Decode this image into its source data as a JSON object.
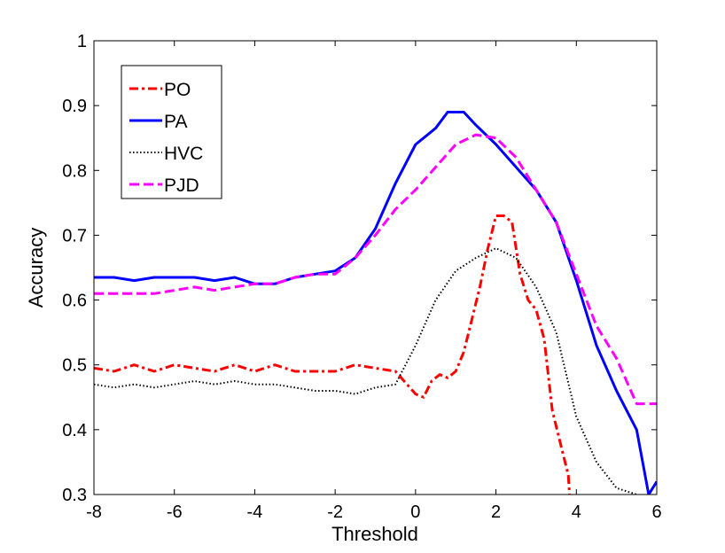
{
  "chart_data": {
    "type": "line",
    "title": "",
    "xlabel": "Threshold",
    "ylabel": "Accuracy",
    "xlim": [
      -8,
      6
    ],
    "ylim": [
      0.3,
      1
    ],
    "xticks": [
      -8,
      -6,
      -4,
      -2,
      0,
      2,
      4,
      6
    ],
    "xtick_labels": [
      "-8",
      "-6",
      "-4",
      "-2",
      "0",
      "2",
      "4",
      "6"
    ],
    "yticks": [
      0.3,
      0.4,
      0.5,
      0.6,
      0.7,
      0.8,
      0.9,
      1
    ],
    "ytick_labels": [
      "0.3",
      "0.4",
      "0.5",
      "0.6",
      "0.7",
      "0.8",
      "0.9",
      "1"
    ],
    "grid": false,
    "legend_position": "top-left",
    "series": [
      {
        "name": "PO",
        "color": "#ff0000",
        "dash": "dashdot",
        "x": [
          -8,
          -7.5,
          -7,
          -6.5,
          -6,
          -5.5,
          -5,
          -4.5,
          -4,
          -3.5,
          -3,
          -2.5,
          -2,
          -1.5,
          -1,
          -0.5,
          0,
          0.2,
          0.4,
          0.6,
          0.8,
          1,
          1.2,
          1.4,
          1.6,
          1.8,
          2,
          2.2,
          2.4,
          2.6,
          2.8,
          3,
          3.2,
          3.4,
          3.6,
          3.8,
          3.83
        ],
        "y": [
          0.495,
          0.49,
          0.5,
          0.49,
          0.5,
          0.495,
          0.49,
          0.5,
          0.49,
          0.5,
          0.49,
          0.49,
          0.49,
          0.5,
          0.495,
          0.49,
          0.455,
          0.45,
          0.475,
          0.485,
          0.48,
          0.49,
          0.52,
          0.57,
          0.62,
          0.68,
          0.73,
          0.73,
          0.72,
          0.64,
          0.6,
          0.585,
          0.54,
          0.43,
          0.38,
          0.33,
          0.3
        ]
      },
      {
        "name": "PA",
        "color": "#0000ff",
        "dash": "solid",
        "x": [
          -8,
          -7.5,
          -7,
          -6.5,
          -6,
          -5.5,
          -5,
          -4.5,
          -4,
          -3.5,
          -3,
          -2.5,
          -2,
          -1.5,
          -1,
          -0.5,
          0,
          0.5,
          0.8,
          1.2,
          1.5,
          2,
          2.5,
          3,
          3.5,
          4,
          4.5,
          5,
          5.5,
          5.8,
          6
        ],
        "y": [
          0.635,
          0.635,
          0.63,
          0.635,
          0.635,
          0.635,
          0.63,
          0.635,
          0.625,
          0.625,
          0.635,
          0.64,
          0.645,
          0.665,
          0.71,
          0.78,
          0.84,
          0.865,
          0.89,
          0.89,
          0.87,
          0.84,
          0.805,
          0.77,
          0.72,
          0.63,
          0.53,
          0.46,
          0.4,
          0.3,
          0.32
        ]
      },
      {
        "name": "HVC",
        "color": "#000000",
        "dash": "dotted",
        "x": [
          -8,
          -7.5,
          -7,
          -6.5,
          -6,
          -5.5,
          -5,
          -4.5,
          -4,
          -3.5,
          -3,
          -2.5,
          -2,
          -1.5,
          -1,
          -0.5,
          0,
          0.5,
          1,
          1.5,
          2,
          2.5,
          3,
          3.5,
          4,
          4.5,
          5,
          5.5
        ],
        "y": [
          0.47,
          0.465,
          0.47,
          0.465,
          0.47,
          0.475,
          0.47,
          0.475,
          0.47,
          0.47,
          0.465,
          0.46,
          0.46,
          0.455,
          0.465,
          0.47,
          0.53,
          0.6,
          0.645,
          0.665,
          0.68,
          0.665,
          0.62,
          0.55,
          0.42,
          0.35,
          0.31,
          0.3
        ]
      },
      {
        "name": "PJD",
        "color": "#ff00ff",
        "dash": "dashed",
        "x": [
          -8,
          -7.5,
          -7,
          -6.5,
          -6,
          -5.5,
          -5,
          -4.5,
          -4,
          -3.5,
          -3,
          -2.5,
          -2,
          -1.5,
          -1,
          -0.5,
          0,
          0.5,
          1,
          1.5,
          2,
          2.5,
          3,
          3.5,
          4,
          4.5,
          5,
          5.5,
          6
        ],
        "y": [
          0.61,
          0.61,
          0.61,
          0.61,
          0.615,
          0.62,
          0.615,
          0.62,
          0.625,
          0.625,
          0.635,
          0.64,
          0.64,
          0.665,
          0.7,
          0.74,
          0.77,
          0.805,
          0.84,
          0.855,
          0.85,
          0.82,
          0.77,
          0.72,
          0.64,
          0.56,
          0.51,
          0.44,
          0.44
        ]
      }
    ]
  }
}
